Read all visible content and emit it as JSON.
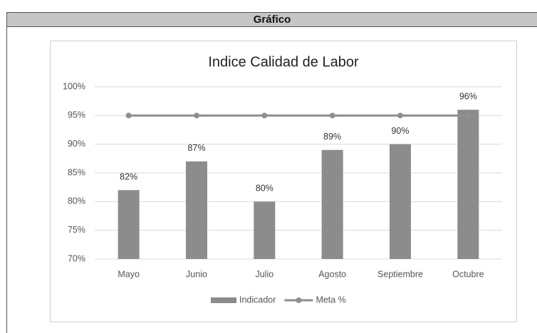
{
  "header": {
    "title": "Gráfico"
  },
  "chart_data": {
    "type": "bar",
    "title": "Indice Calidad de Labor",
    "categories": [
      "Mayo",
      "Junio",
      "Julio",
      "Agosto",
      "Septiembre",
      "Octubre"
    ],
    "series": [
      {
        "name": "Indicador",
        "type": "bar",
        "color": "#8c8c8c",
        "values": [
          82,
          87,
          80,
          89,
          90,
          96
        ],
        "value_labels": [
          "82%",
          "87%",
          "80%",
          "89%",
          "90%",
          "96%"
        ]
      },
      {
        "name": "Meta %",
        "type": "line",
        "color": "#8f8f8f",
        "values": [
          95,
          95,
          95,
          95,
          95,
          95
        ]
      }
    ],
    "ylim": [
      70,
      100
    ],
    "yticks": [
      {
        "value": 70,
        "label": "70%"
      },
      {
        "value": 75,
        "label": "75%"
      },
      {
        "value": 80,
        "label": "80%"
      },
      {
        "value": 85,
        "label": "85%"
      },
      {
        "value": 90,
        "label": "90%"
      },
      {
        "value": 95,
        "label": "95%"
      },
      {
        "value": 100,
        "label": "100%"
      }
    ],
    "grid": true,
    "legend": "bottom"
  }
}
